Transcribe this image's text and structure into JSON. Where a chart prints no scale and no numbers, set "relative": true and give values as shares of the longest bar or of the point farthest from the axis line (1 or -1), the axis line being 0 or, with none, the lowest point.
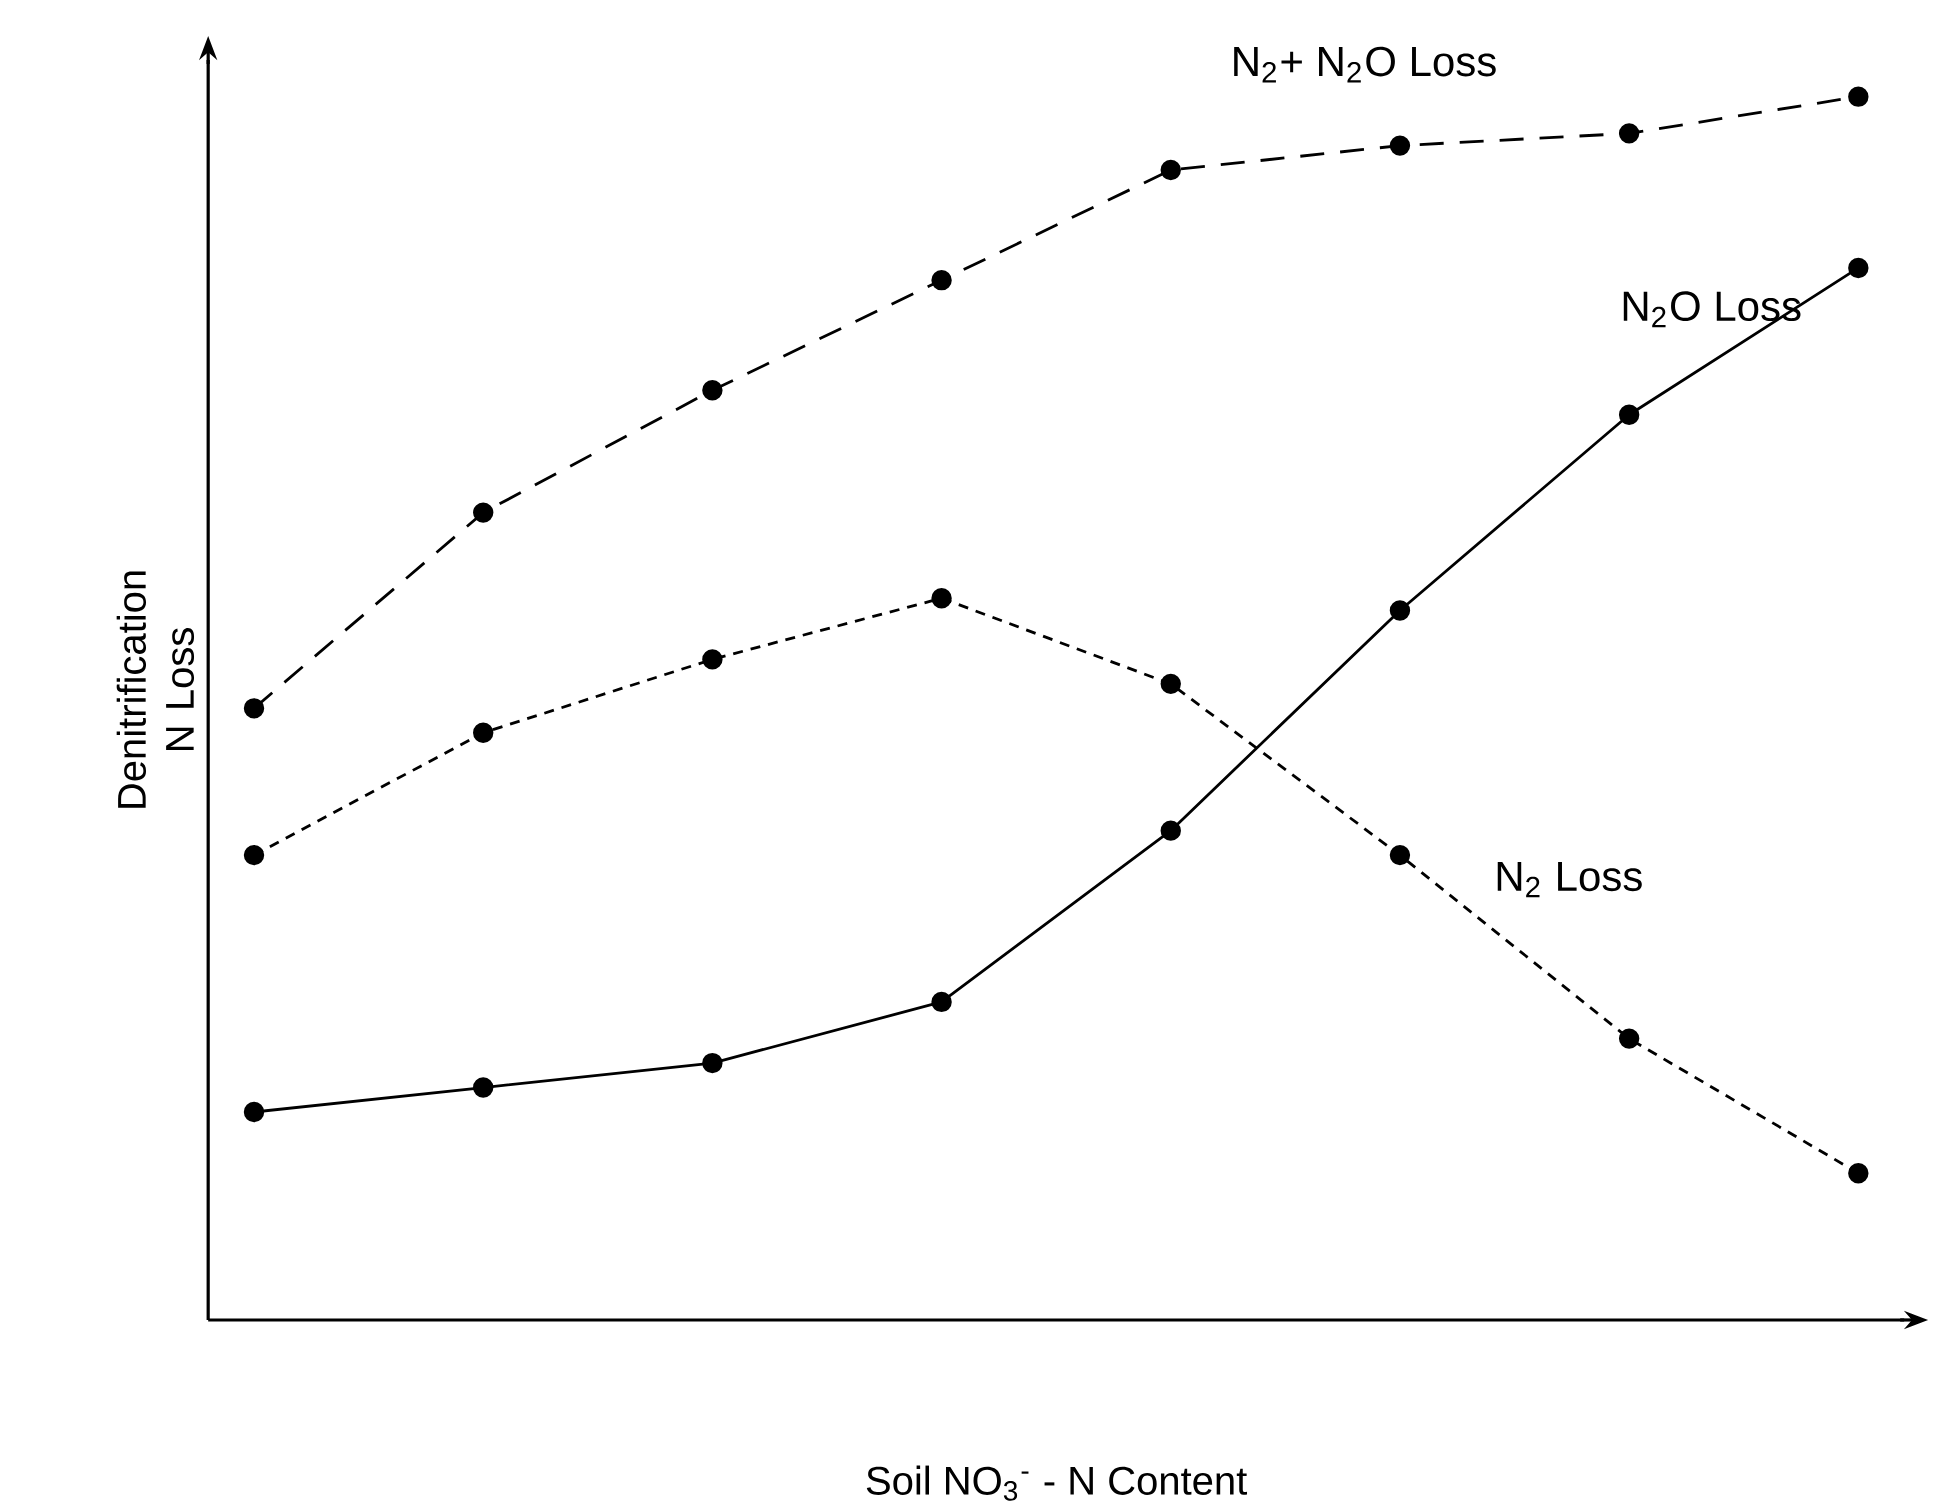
{
  "chart_data": {
    "type": "line",
    "relative": true,
    "xlabel": "Soil  NO$_{3}$$^{-}$ - N Content",
    "ylabel": "Denitrification N Loss",
    "categories": [
      null,
      null,
      null,
      null,
      null,
      null,
      null,
      null
    ],
    "marker": "circle",
    "series": [
      {
        "name": "N$_{2}$+ N$_{2}$O  Loss",
        "color": "#000000",
        "line_style": "dashed",
        "values": [
          0.5,
          0.66,
          0.76,
          0.85,
          0.94,
          0.96,
          0.97,
          1.0
        ]
      },
      {
        "name": "N$_{2}$O  Loss",
        "color": "#000000",
        "line_style": "solid",
        "values": [
          0.17,
          0.19,
          0.21,
          0.26,
          0.4,
          0.58,
          0.74,
          0.86
        ]
      },
      {
        "name": "N$_{2}$ Loss",
        "color": "#000000",
        "line_style": "dotted",
        "values": [
          0.38,
          0.48,
          0.54,
          0.59,
          0.52,
          0.38,
          0.23,
          0.12
        ]
      }
    ]
  }
}
